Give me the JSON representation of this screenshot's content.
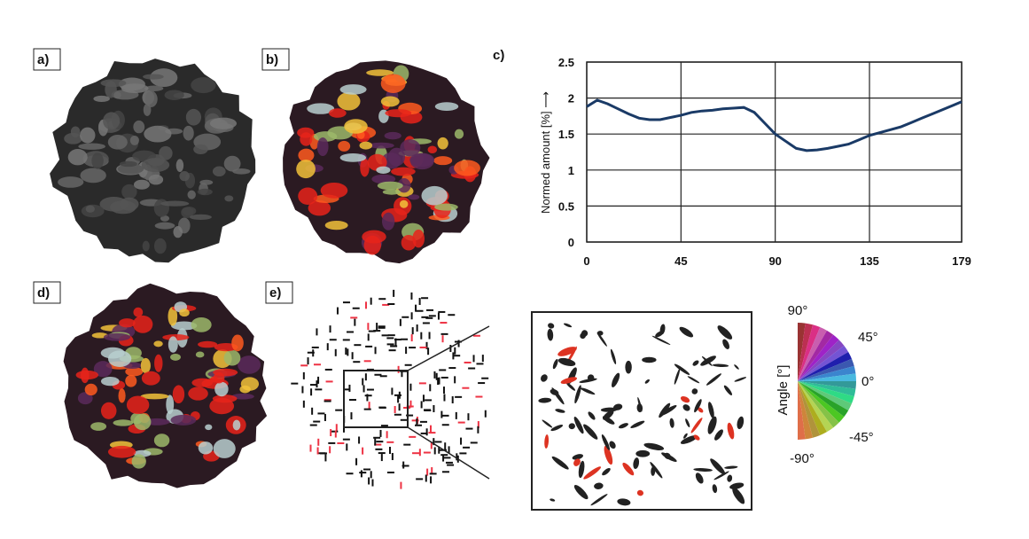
{
  "panels": {
    "a": "a)",
    "b": "b)",
    "c": "c)",
    "d": "d)",
    "e": "e)"
  },
  "chart_data": {
    "type": "line",
    "y_label": "Normed amount [%] ⟶",
    "x": [
      0,
      5,
      10,
      15,
      20,
      25,
      30,
      35,
      40,
      45,
      50,
      55,
      60,
      65,
      70,
      75,
      80,
      85,
      90,
      95,
      100,
      105,
      110,
      115,
      120,
      125,
      130,
      135,
      140,
      145,
      150,
      155,
      160,
      165,
      170,
      175,
      179
    ],
    "series": [
      {
        "color": "#1a3a66",
        "values": [
          1.88,
          1.97,
          1.92,
          1.85,
          1.78,
          1.72,
          1.7,
          1.7,
          1.73,
          1.76,
          1.8,
          1.82,
          1.83,
          1.85,
          1.86,
          1.87,
          1.8,
          1.65,
          1.5,
          1.4,
          1.3,
          1.27,
          1.28,
          1.3,
          1.33,
          1.36,
          1.42,
          1.48,
          1.52,
          1.56,
          1.6,
          1.66,
          1.72,
          1.78,
          1.84,
          1.9,
          1.95
        ]
      }
    ],
    "xlim": [
      0,
      179
    ],
    "xticks": [
      0,
      45,
      90,
      135,
      179
    ],
    "ylim": [
      0,
      2.5
    ],
    "yticks": [
      0,
      0.5,
      1,
      1.5,
      2,
      2.5
    ],
    "grid": true
  },
  "angle_legend": {
    "title": "Angle [°]",
    "labels": [
      "90°",
      "45°",
      "0°",
      "-45°",
      "-90°"
    ]
  }
}
